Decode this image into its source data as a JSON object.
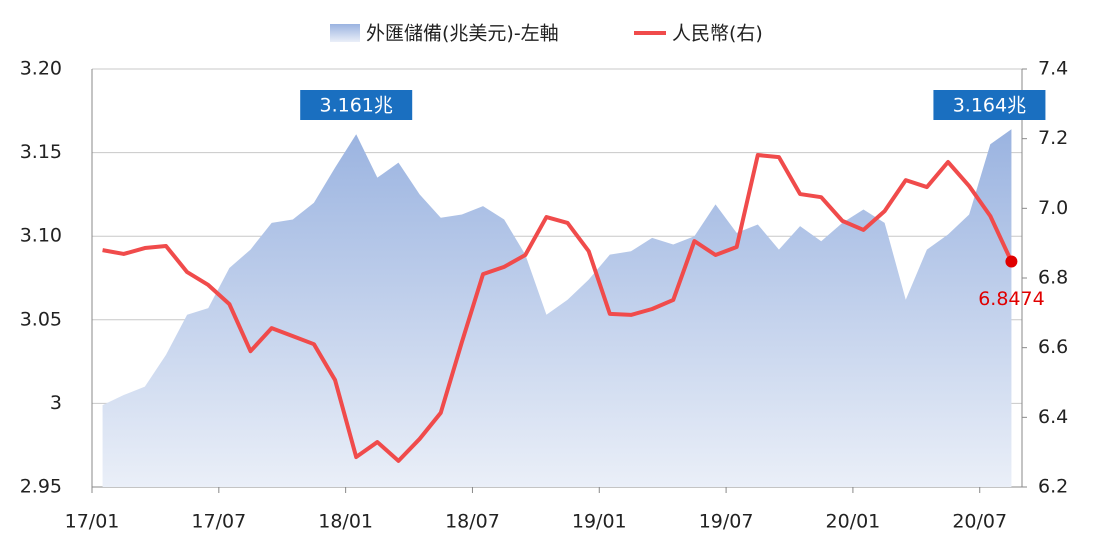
{
  "chart_data": {
    "type": "area-line",
    "categories": [
      "17/01",
      null,
      null,
      null,
      null,
      null,
      "17/07",
      null,
      null,
      null,
      null,
      null,
      "18/01",
      null,
      null,
      null,
      null,
      null,
      "18/07",
      null,
      null,
      null,
      null,
      null,
      "19/01",
      null,
      null,
      null,
      null,
      null,
      "19/07",
      null,
      null,
      null,
      null,
      null,
      "20/01",
      null,
      null,
      null,
      null,
      null,
      "20/07",
      null
    ],
    "series": [
      {
        "name": "外匯儲備(兆美元)-左軸",
        "type": "area",
        "color": "#9ab3e0",
        "values": [
          2.999,
          3.005,
          3.01,
          3.029,
          3.053,
          3.057,
          3.081,
          3.092,
          3.108,
          3.11,
          3.12,
          3.141,
          3.161,
          3.135,
          3.144,
          3.125,
          3.111,
          3.113,
          3.118,
          3.11,
          3.089,
          3.053,
          3.062,
          3.074,
          3.089,
          3.091,
          3.099,
          3.095,
          3.1,
          3.119,
          3.102,
          3.107,
          3.092,
          3.106,
          3.097,
          3.108,
          3.116,
          3.108,
          3.062,
          3.092,
          3.101,
          3.113,
          3.155,
          3.164
        ],
        "value_labels": [
          null,
          null,
          null,
          null,
          null,
          null,
          null,
          null,
          null,
          null,
          null,
          null,
          "3.161兆",
          null,
          null,
          null,
          null,
          null,
          null,
          null,
          null,
          null,
          null,
          null,
          null,
          null,
          null,
          null,
          null,
          null,
          null,
          null,
          null,
          null,
          null,
          null,
          null,
          null,
          null,
          null,
          null,
          null,
          null,
          "3.164兆"
        ]
      },
      {
        "name": "人民幣(右)",
        "type": "line",
        "axis": "y2",
        "color": "#f04b4b",
        "values": [
          6.88,
          6.869,
          6.886,
          6.892,
          6.817,
          6.78,
          6.725,
          6.59,
          6.656,
          6.633,
          6.61,
          6.507,
          6.286,
          6.329,
          6.275,
          6.338,
          6.413,
          6.616,
          6.811,
          6.832,
          6.866,
          6.975,
          6.958,
          6.877,
          6.697,
          6.694,
          6.711,
          6.737,
          6.906,
          6.866,
          6.889,
          7.153,
          7.147,
          7.041,
          7.032,
          6.964,
          6.938,
          6.992,
          7.081,
          7.061,
          7.133,
          7.064,
          6.978,
          6.8474
        ],
        "value_labels": [
          null,
          null,
          null,
          null,
          null,
          null,
          null,
          null,
          null,
          null,
          null,
          null,
          null,
          null,
          null,
          null,
          null,
          null,
          null,
          null,
          null,
          null,
          null,
          null,
          null,
          null,
          null,
          null,
          null,
          null,
          null,
          null,
          null,
          null,
          null,
          null,
          null,
          null,
          null,
          null,
          null,
          null,
          null,
          "6.8474"
        ]
      }
    ],
    "ylim": [
      2.95,
      3.2
    ],
    "yticks": [
      {
        "value": 2.95,
        "label": "2.95"
      },
      3,
      {
        "value": 3.05,
        "label": "3.05"
      },
      {
        "value": 3.1,
        "label": "3.10"
      },
      {
        "value": 3.15,
        "label": "3.15"
      },
      {
        "value": 3.2,
        "label": "3.20"
      }
    ],
    "y2lim": [
      6.2,
      7.4
    ],
    "y2ticks": [
      6.2,
      6.4,
      6.6,
      6.8,
      {
        "value": 7,
        "label": "7.0"
      },
      7.2,
      7.4
    ],
    "grid": true,
    "legend": "top"
  }
}
